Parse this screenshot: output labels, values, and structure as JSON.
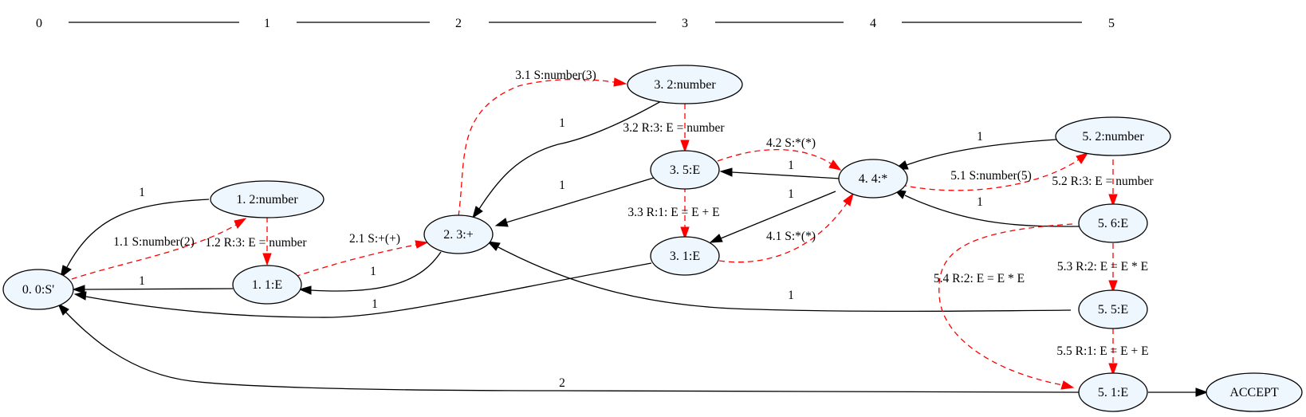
{
  "ruler": {
    "steps": [
      "0",
      "1",
      "2",
      "3",
      "4",
      "5"
    ]
  },
  "nodes": {
    "n0_0": "0. 0:S'",
    "n1_2": "1. 2:number",
    "n1_1": "1. 1:E",
    "n2_3": "2. 3:+",
    "n3_2": "3. 2:number",
    "n3_5": "3. 5:E",
    "n3_1": "3. 1:E",
    "n4_4": "4. 4:*",
    "n5_2": "5. 2:number",
    "n5_6": "5. 6:E",
    "n5_5": "5. 5:E",
    "n5_1": "5. 1:E",
    "accept": "ACCEPT"
  },
  "edge_labels": {
    "e_12_00": "1",
    "e_11_00": "1",
    "e_23_11": "1",
    "e_31_00": "1",
    "e_32_23": "1",
    "e_35_23": "1",
    "e_44_35": "1",
    "e_44_31": "1",
    "e_52_44": "1",
    "e_56_44": "1",
    "e_55_23": "1",
    "e_51_00": "2",
    "r_1_1": "1.1 S:number(2)",
    "r_1_2": "1.2 R:3: E = number",
    "r_2_1": "2.1 S:+(+)",
    "r_3_1": "3.1 S:number(3)",
    "r_3_2": "3.2 R:3: E = number",
    "r_3_3": "3.3 R:1: E = E + E",
    "r_4_1": "4.1 S:*(*)",
    "r_4_2": "4.2 S:*(*)",
    "r_5_1": "5.1 S:number(5)",
    "r_5_2": "5.2 R:3: E = number",
    "r_5_3": "5.3 R:2: E = E * E",
    "r_5_4": "5.4 R:2: E = E * E",
    "r_5_5": "5.5 R:1: E = E + E"
  },
  "colors": {
    "node_fill": "#eef6fe",
    "shift_reduce_edge": "#ff0000",
    "goto_edge": "#000000"
  }
}
